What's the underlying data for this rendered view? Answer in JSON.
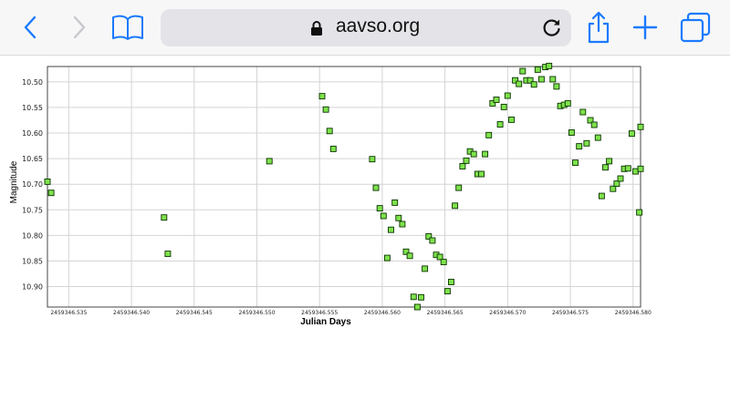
{
  "browser": {
    "url": "aavso.org",
    "icons": {
      "back": "back-chevron-icon",
      "forward": "forward-chevron-icon",
      "bookmarks": "book-icon",
      "lock": "lock-icon",
      "reload": "reload-icon",
      "share": "share-icon",
      "new_tab": "plus-icon",
      "tabs": "tabs-icon"
    },
    "accent": "#1a7aff"
  },
  "chart_data": {
    "type": "scatter",
    "xlabel": "Julian Days",
    "ylabel": "Magnitude",
    "x_ticks": [
      "2459346.535",
      "2459346.540",
      "2459346.545",
      "2459346.550",
      "2459346.555",
      "2459346.560",
      "2459346.565",
      "2459346.570",
      "2459346.575",
      "2459346.580"
    ],
    "y_ticks": [
      "10.50",
      "10.55",
      "10.60",
      "10.65",
      "10.70",
      "10.75",
      "10.80",
      "10.85",
      "10.90"
    ],
    "xlim": [
      2459346.5333,
      2459346.5806
    ],
    "ylim": [
      10.94,
      10.47
    ],
    "y_inverted": true,
    "grid": true,
    "marker_color": "#7ee24c",
    "marker_edge": "#0a3300",
    "series": [
      {
        "points": [
          [
            2459346.5333,
            10.695
          ],
          [
            2459346.5336,
            10.717
          ],
          [
            2459346.5426,
            10.765
          ],
          [
            2459346.5429,
            10.836
          ],
          [
            2459346.551,
            10.655
          ],
          [
            2459346.5552,
            10.528
          ],
          [
            2459346.5555,
            10.554
          ],
          [
            2459346.5558,
            10.596
          ],
          [
            2459346.5561,
            10.631
          ],
          [
            2459346.5592,
            10.651
          ],
          [
            2459346.5595,
            10.707
          ],
          [
            2459346.5598,
            10.747
          ],
          [
            2459346.5601,
            10.762
          ],
          [
            2459346.5604,
            10.844
          ],
          [
            2459346.5607,
            10.789
          ],
          [
            2459346.561,
            10.736
          ],
          [
            2459346.5613,
            10.766
          ],
          [
            2459346.5616,
            10.778
          ],
          [
            2459346.5619,
            10.832
          ],
          [
            2459346.5622,
            10.84
          ],
          [
            2459346.5625,
            10.92
          ],
          [
            2459346.5628,
            10.94
          ],
          [
            2459346.5631,
            10.921
          ],
          [
            2459346.5634,
            10.865
          ],
          [
            2459346.5637,
            10.802
          ],
          [
            2459346.564,
            10.81
          ],
          [
            2459346.5643,
            10.838
          ],
          [
            2459346.5646,
            10.842
          ],
          [
            2459346.5649,
            10.852
          ],
          [
            2459346.5652,
            10.909
          ],
          [
            2459346.5655,
            10.891
          ],
          [
            2459346.5658,
            10.742
          ],
          [
            2459346.5661,
            10.707
          ],
          [
            2459346.5664,
            10.665
          ],
          [
            2459346.5667,
            10.654
          ],
          [
            2459346.567,
            10.636
          ],
          [
            2459346.5673,
            10.641
          ],
          [
            2459346.5676,
            10.68
          ],
          [
            2459346.5679,
            10.68
          ],
          [
            2459346.5682,
            10.641
          ],
          [
            2459346.5685,
            10.604
          ],
          [
            2459346.5688,
            10.542
          ],
          [
            2459346.5691,
            10.535
          ],
          [
            2459346.5694,
            10.583
          ],
          [
            2459346.5697,
            10.549
          ],
          [
            2459346.57,
            10.527
          ],
          [
            2459346.5703,
            10.574
          ],
          [
            2459346.5706,
            10.497
          ],
          [
            2459346.5709,
            10.504
          ],
          [
            2459346.5712,
            10.479
          ],
          [
            2459346.5715,
            10.497
          ],
          [
            2459346.5718,
            10.497
          ],
          [
            2459346.5721,
            10.505
          ],
          [
            2459346.5724,
            10.476
          ],
          [
            2459346.5727,
            10.495
          ],
          [
            2459346.573,
            10.471
          ],
          [
            2459346.5733,
            10.469
          ],
          [
            2459346.5736,
            10.495
          ],
          [
            2459346.5739,
            10.509
          ],
          [
            2459346.5742,
            10.547
          ],
          [
            2459346.5745,
            10.545
          ],
          [
            2459346.5748,
            10.542
          ],
          [
            2459346.5751,
            10.599
          ],
          [
            2459346.5754,
            10.658
          ],
          [
            2459346.5757,
            10.626
          ],
          [
            2459346.576,
            10.559
          ],
          [
            2459346.5763,
            10.62
          ],
          [
            2459346.5766,
            10.575
          ],
          [
            2459346.5769,
            10.584
          ],
          [
            2459346.5772,
            10.609
          ],
          [
            2459346.5775,
            10.723
          ],
          [
            2459346.5778,
            10.667
          ],
          [
            2459346.5781,
            10.655
          ],
          [
            2459346.5784,
            10.709
          ],
          [
            2459346.5787,
            10.699
          ],
          [
            2459346.579,
            10.689
          ],
          [
            2459346.5793,
            10.67
          ],
          [
            2459346.5796,
            10.669
          ],
          [
            2459346.5799,
            10.601
          ],
          [
            2459346.5802,
            10.675
          ],
          [
            2459346.5805,
            10.755
          ],
          [
            2459346.5806,
            10.67
          ],
          [
            2459346.5806,
            10.588
          ]
        ]
      }
    ]
  }
}
